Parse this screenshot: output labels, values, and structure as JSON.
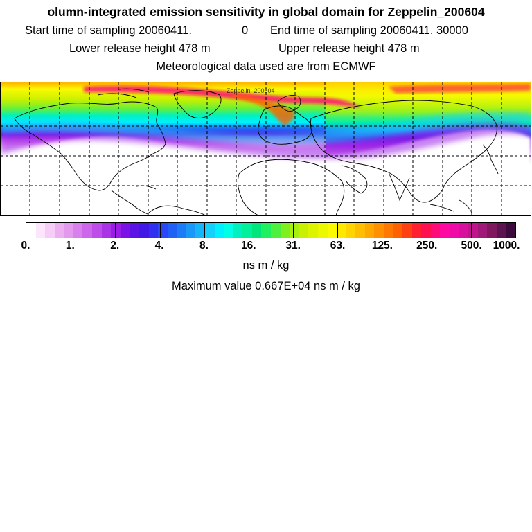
{
  "header": {
    "title": "olumn-integrated emission sensitivity in global domain for Zeppelin_200604",
    "start_label": "Start time of sampling 20060411.",
    "start_value": "0",
    "end_label": "End time of sampling 20060411. 30000",
    "lower_label": "Lower release height  478 m",
    "upper_label": "Upper release height  478 m",
    "met_label": "Meteorological data used are from ECMWF"
  },
  "map": {
    "station_label": "Zeppelin_200604",
    "gridline_style": "dashed"
  },
  "colorbar": {
    "colors": [
      "#ffffff",
      "#fce6fc",
      "#f6cdf6",
      "#ecb0f0",
      "#e399ee",
      "#d880ec",
      "#cc66ea",
      "#bd4ce9",
      "#aa33e8",
      "#9b1ce6",
      "#7a14e6",
      "#5c14e6",
      "#4019e6",
      "#3030f0",
      "#2a48f5",
      "#2060f5",
      "#1c7cf7",
      "#1a98f8",
      "#18b4f9",
      "#14d0fa",
      "#00f0ff",
      "#00ffe6",
      "#00f0c0",
      "#00f09c",
      "#00e67c",
      "#1ef060",
      "#4ef040",
      "#7ef01e",
      "#a8f010",
      "#c8f000",
      "#dcf400",
      "#ecf800",
      "#fafa00",
      "#ffe800",
      "#ffd400",
      "#ffbe00",
      "#ffa800",
      "#ff9000",
      "#ff7800",
      "#ff6000",
      "#ff4010",
      "#ff2030",
      "#ff1050",
      "#ff0c78",
      "#ff0aa0",
      "#f00aa8",
      "#d8109e",
      "#c0148c",
      "#a01878",
      "#801860",
      "#5c1450",
      "#3c0a3c"
    ],
    "labels": [
      "0.",
      "1.",
      "2.",
      "4.",
      "8.",
      "16.",
      "31.",
      "63.",
      "125.",
      "250.",
      "500.",
      "1000."
    ],
    "unit": "ns m / kg"
  },
  "footer": {
    "max_value": "Maximum value  0.667E+04 ns m / kg"
  }
}
